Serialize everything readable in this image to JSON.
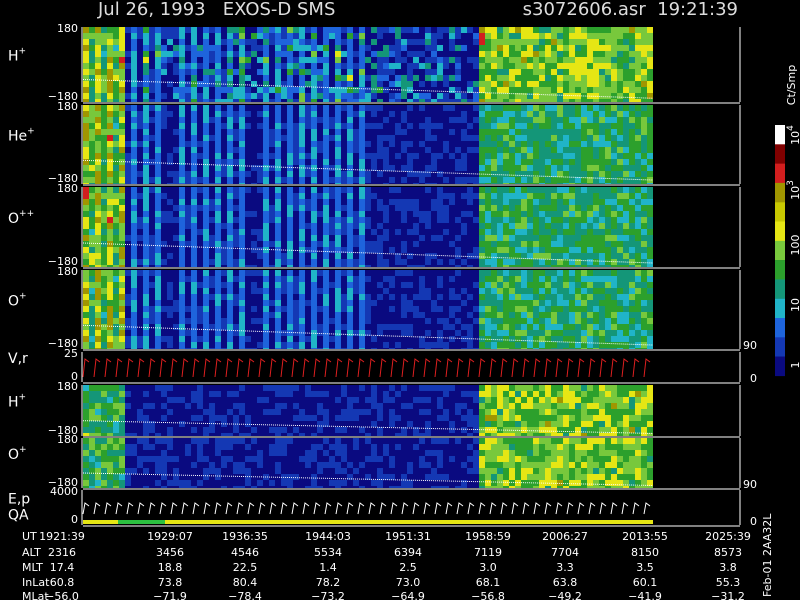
{
  "header": {
    "title": "Jul 26, 1993   EXOS-D SMS",
    "file": "s3072606.asr  19:21:39"
  },
  "panels": [
    {
      "name": "H",
      "sup": "+",
      "ticks": [
        "180",
        "−180"
      ]
    },
    {
      "name": "He",
      "sup": "+",
      "ticks": [
        "180",
        "−180"
      ]
    },
    {
      "name": "O",
      "sup": "++",
      "ticks": [
        "180",
        "−180"
      ]
    },
    {
      "name": "O",
      "sup": "+",
      "ticks": [
        "180",
        "−180"
      ],
      "right_ticks": [
        "90"
      ]
    },
    {
      "name": "V,r",
      "sup": "",
      "ticks": [
        "25",
        "0"
      ],
      "right_ticks": [
        "0"
      ]
    },
    {
      "name": "H",
      "sup": "+",
      "ticks": [
        "180",
        "−180"
      ]
    },
    {
      "name": "O",
      "sup": "+",
      "ticks": [
        "180",
        "−180"
      ],
      "right_ticks": [
        "90"
      ]
    },
    {
      "name": "E,p",
      "sup": "",
      "name2": "QA",
      "ticks": [
        "4000",
        "0"
      ],
      "right_ticks": [
        "0"
      ]
    }
  ],
  "colorbar": {
    "unit": "Ct/Smp",
    "labels": [
      {
        "base": "10",
        "sup": "4"
      },
      {
        "base": "10",
        "sup": "3"
      },
      {
        "base": "100",
        "sup": ""
      },
      {
        "base": "10",
        "sup": ""
      },
      {
        "base": "1",
        "sup": ""
      }
    ]
  },
  "ephemeris": {
    "rows": [
      {
        "label": "UT",
        "values": [
          "1921:39",
          "1929:07",
          "1936:35",
          "1944:03",
          "1951:31",
          "1958:59",
          "2006:27",
          "2013:55",
          "2025:39"
        ]
      },
      {
        "label": "ALT",
        "values": [
          "2316",
          "3456",
          "4546",
          "5534",
          "6394",
          "7119",
          "7704",
          "8150",
          "8573"
        ]
      },
      {
        "label": "MLT",
        "values": [
          "17.4",
          "18.8",
          "22.5",
          "1.4",
          "2.5",
          "3.0",
          "3.3",
          "3.5",
          "3.8"
        ]
      },
      {
        "label": "InLat",
        "values": [
          "60.8",
          "73.8",
          "80.4",
          "78.2",
          "73.0",
          "68.1",
          "63.8",
          "60.1",
          "55.3"
        ]
      },
      {
        "label": "MLat",
        "values": [
          "−56.0",
          "−71.9",
          "−78.4",
          "−73.2",
          "−64.9",
          "−56.8",
          "−49.2",
          "−41.9",
          "−31.2"
        ]
      }
    ]
  },
  "side_label": "Feb-01  2AA32L"
}
